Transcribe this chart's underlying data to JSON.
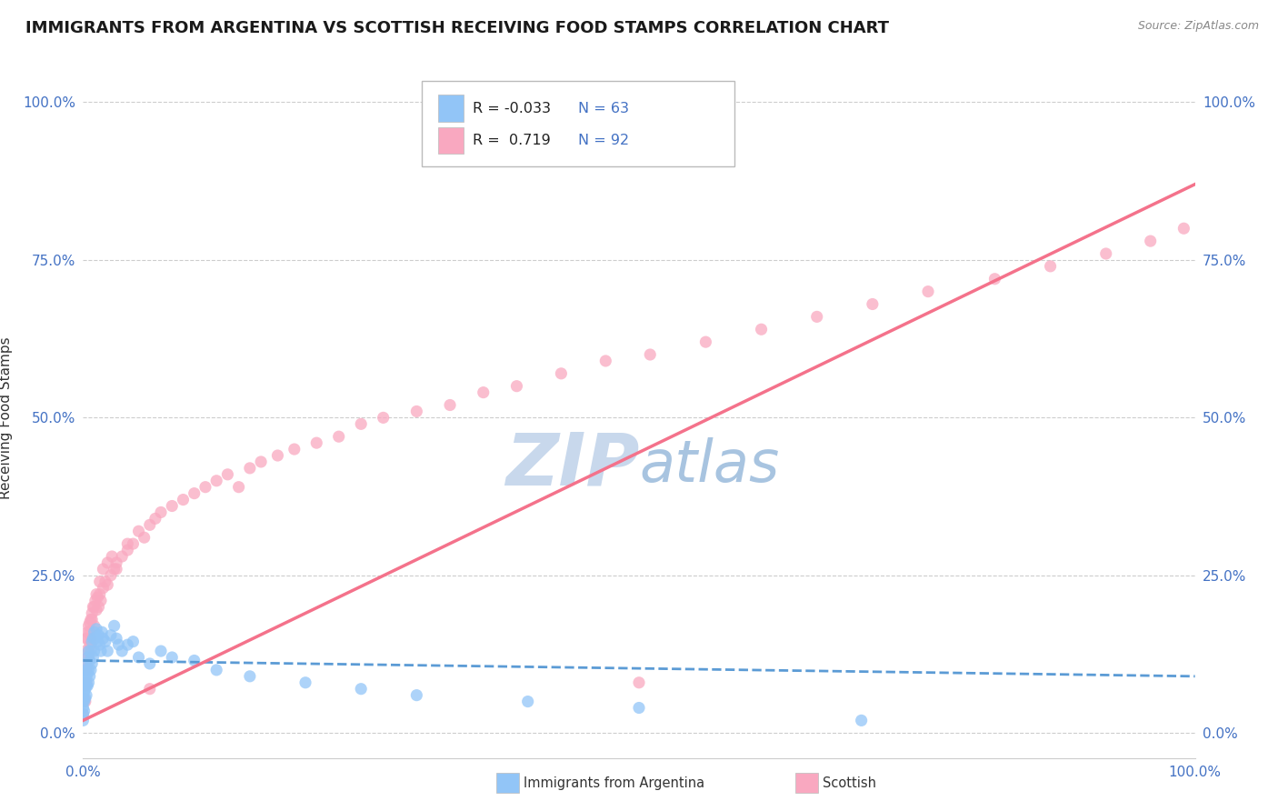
{
  "title": "IMMIGRANTS FROM ARGENTINA VS SCOTTISH RECEIVING FOOD STAMPS CORRELATION CHART",
  "source_text": "Source: ZipAtlas.com",
  "ylabel": "Receiving Food Stamps",
  "xlim": [
    0,
    1.0
  ],
  "ylim": [
    -0.04,
    1.04
  ],
  "x_tick_labels": [
    "0.0%",
    "100.0%"
  ],
  "x_tick_vals": [
    0.0,
    1.0
  ],
  "y_tick_labels": [
    "0.0%",
    "25.0%",
    "50.0%",
    "75.0%",
    "100.0%"
  ],
  "y_tick_vals": [
    0.0,
    0.25,
    0.5,
    0.75,
    1.0
  ],
  "title_fontsize": 13,
  "label_fontsize": 11,
  "tick_fontsize": 11,
  "color_argentina": "#92C5F7",
  "color_scottish": "#F9A8C0",
  "line_argentina": "#5B9BD5",
  "line_scottish": "#F4728B",
  "grid_color": "#C8C8C8",
  "background_color": "#FFFFFF",
  "watermark_color": "#C8D8EC",
  "argentina_scatter_x": [
    0.0,
    0.0,
    0.0,
    0.0,
    0.0,
    0.001,
    0.001,
    0.001,
    0.001,
    0.002,
    0.002,
    0.002,
    0.002,
    0.003,
    0.003,
    0.003,
    0.003,
    0.004,
    0.004,
    0.004,
    0.005,
    0.005,
    0.005,
    0.006,
    0.006,
    0.007,
    0.007,
    0.008,
    0.008,
    0.009,
    0.009,
    0.01,
    0.01,
    0.011,
    0.012,
    0.013,
    0.014,
    0.015,
    0.016,
    0.017,
    0.018,
    0.02,
    0.022,
    0.025,
    0.028,
    0.03,
    0.032,
    0.035,
    0.04,
    0.045,
    0.05,
    0.06,
    0.07,
    0.08,
    0.1,
    0.12,
    0.15,
    0.2,
    0.25,
    0.3,
    0.4,
    0.5,
    0.7
  ],
  "argentina_scatter_y": [
    0.06,
    0.05,
    0.04,
    0.03,
    0.02,
    0.08,
    0.065,
    0.05,
    0.035,
    0.1,
    0.085,
    0.07,
    0.055,
    0.11,
    0.09,
    0.075,
    0.06,
    0.12,
    0.095,
    0.075,
    0.13,
    0.1,
    0.08,
    0.115,
    0.09,
    0.13,
    0.1,
    0.145,
    0.11,
    0.15,
    0.12,
    0.16,
    0.13,
    0.15,
    0.165,
    0.145,
    0.155,
    0.14,
    0.13,
    0.16,
    0.15,
    0.145,
    0.13,
    0.155,
    0.17,
    0.15,
    0.14,
    0.13,
    0.14,
    0.145,
    0.12,
    0.11,
    0.13,
    0.12,
    0.115,
    0.1,
    0.09,
    0.08,
    0.07,
    0.06,
    0.05,
    0.04,
    0.02
  ],
  "scottish_scatter_x": [
    0.0,
    0.0,
    0.001,
    0.001,
    0.001,
    0.002,
    0.002,
    0.002,
    0.003,
    0.003,
    0.003,
    0.004,
    0.004,
    0.005,
    0.005,
    0.006,
    0.006,
    0.007,
    0.007,
    0.008,
    0.009,
    0.01,
    0.011,
    0.012,
    0.013,
    0.014,
    0.015,
    0.016,
    0.018,
    0.02,
    0.022,
    0.025,
    0.028,
    0.03,
    0.035,
    0.04,
    0.045,
    0.05,
    0.055,
    0.06,
    0.065,
    0.07,
    0.08,
    0.09,
    0.1,
    0.11,
    0.12,
    0.13,
    0.14,
    0.15,
    0.16,
    0.175,
    0.19,
    0.21,
    0.23,
    0.25,
    0.27,
    0.3,
    0.33,
    0.36,
    0.39,
    0.43,
    0.47,
    0.51,
    0.56,
    0.61,
    0.66,
    0.71,
    0.76,
    0.82,
    0.87,
    0.92,
    0.96,
    0.99,
    0.002,
    0.003,
    0.004,
    0.005,
    0.006,
    0.007,
    0.008,
    0.01,
    0.012,
    0.015,
    0.018,
    0.022,
    0.026,
    0.03,
    0.04,
    0.06,
    0.5
  ],
  "scottish_scatter_y": [
    0.05,
    0.03,
    0.1,
    0.075,
    0.055,
    0.13,
    0.1,
    0.075,
    0.15,
    0.11,
    0.08,
    0.16,
    0.12,
    0.17,
    0.13,
    0.175,
    0.14,
    0.18,
    0.15,
    0.19,
    0.2,
    0.17,
    0.21,
    0.195,
    0.215,
    0.2,
    0.22,
    0.21,
    0.23,
    0.24,
    0.235,
    0.25,
    0.26,
    0.27,
    0.28,
    0.29,
    0.3,
    0.32,
    0.31,
    0.33,
    0.34,
    0.35,
    0.36,
    0.37,
    0.38,
    0.39,
    0.4,
    0.41,
    0.39,
    0.42,
    0.43,
    0.44,
    0.45,
    0.46,
    0.47,
    0.49,
    0.5,
    0.51,
    0.52,
    0.54,
    0.55,
    0.57,
    0.59,
    0.6,
    0.62,
    0.64,
    0.66,
    0.68,
    0.7,
    0.72,
    0.74,
    0.76,
    0.78,
    0.8,
    0.05,
    0.1,
    0.15,
    0.12,
    0.16,
    0.14,
    0.18,
    0.2,
    0.22,
    0.24,
    0.26,
    0.27,
    0.28,
    0.26,
    0.3,
    0.07,
    0.08
  ],
  "argentina_trend_x": [
    0.0,
    1.0
  ],
  "argentina_trend_y": [
    0.115,
    0.09
  ],
  "scottish_trend_x": [
    0.0,
    1.0
  ],
  "scottish_trend_y": [
    0.02,
    0.87
  ]
}
